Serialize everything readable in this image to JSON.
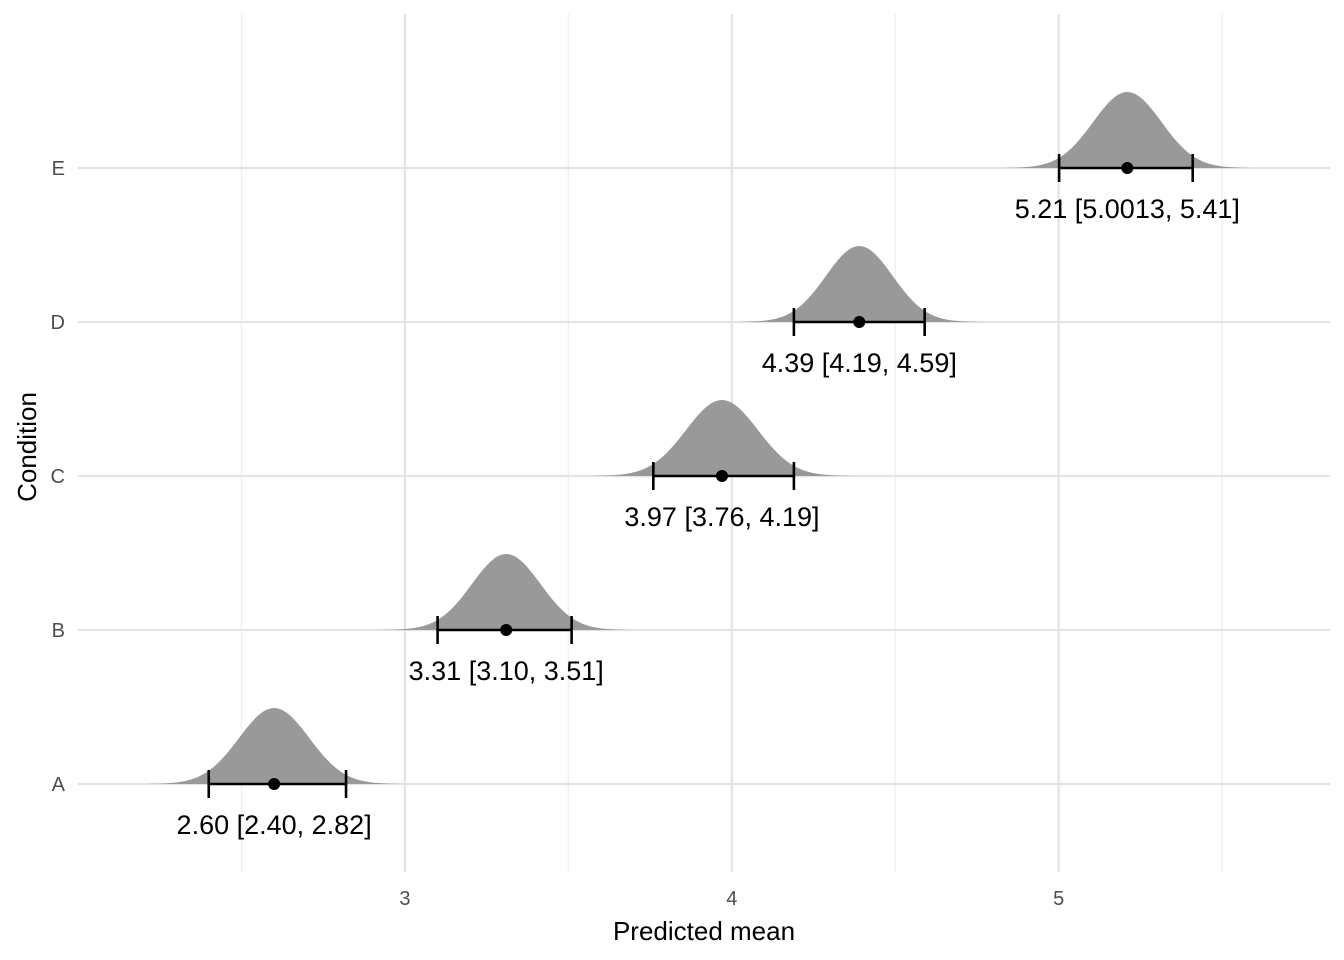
{
  "chart_data": {
    "type": "halfeye",
    "xlabel": "Predicted mean",
    "ylabel": "Condition",
    "xlim": [
      2.0,
      5.83
    ],
    "x_ticks": [
      {
        "value": 3,
        "label": "3"
      },
      {
        "value": 4,
        "label": "4"
      },
      {
        "value": 5,
        "label": "5"
      }
    ],
    "x_minor_grid": [
      2.5,
      3.5,
      4.5,
      5.5
    ],
    "grid": true,
    "categories": [
      "A",
      "B",
      "C",
      "D",
      "E"
    ],
    "series": [
      {
        "category": "A",
        "mean": 2.6,
        "lower": 2.4,
        "upper": 2.82,
        "label": "2.60 [2.40, 2.82]"
      },
      {
        "category": "B",
        "mean": 3.31,
        "lower": 3.1,
        "upper": 3.51,
        "label": "3.31 [3.10, 3.51]"
      },
      {
        "category": "C",
        "mean": 3.97,
        "lower": 3.76,
        "upper": 4.19,
        "label": "3.97 [3.76, 4.19]"
      },
      {
        "category": "D",
        "mean": 4.39,
        "lower": 4.19,
        "upper": 4.59,
        "label": "4.39 [4.19, 4.59]"
      },
      {
        "category": "E",
        "mean": 5.21,
        "lower": 5.0013,
        "upper": 5.41,
        "label": "5.21 [5.0013, 5.41]"
      }
    ],
    "colors": {
      "density_fill": "#999999",
      "interval": "#000000",
      "grid_major": "#e3e3e3",
      "grid_minor": "#eeeeee"
    }
  }
}
